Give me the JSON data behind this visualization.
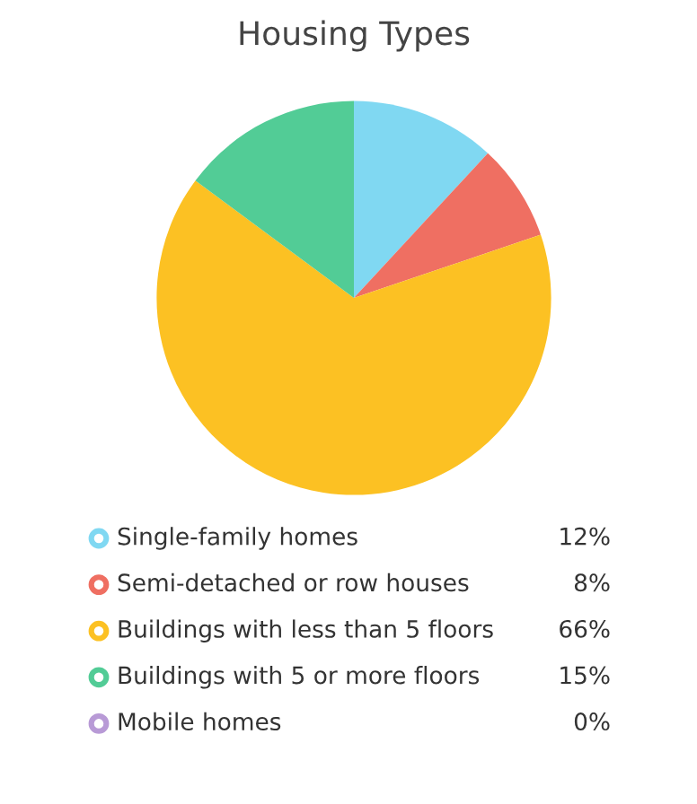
{
  "chart_data": {
    "type": "pie",
    "title": "Housing Types",
    "categories": [
      "Single-family homes",
      "Semi-detached or row houses",
      "Buildings with less than 5 floors",
      "Buildings with 5 or more floors",
      "Mobile homes"
    ],
    "values": [
      12,
      8,
      66,
      15,
      0
    ],
    "colors": [
      "#80d8f2",
      "#ef6f62",
      "#fcc123",
      "#52cc96",
      "#b89ad6"
    ],
    "value_labels": [
      "12%",
      "8%",
      "66%",
      "15%",
      "0%"
    ],
    "legend": "bottom"
  }
}
